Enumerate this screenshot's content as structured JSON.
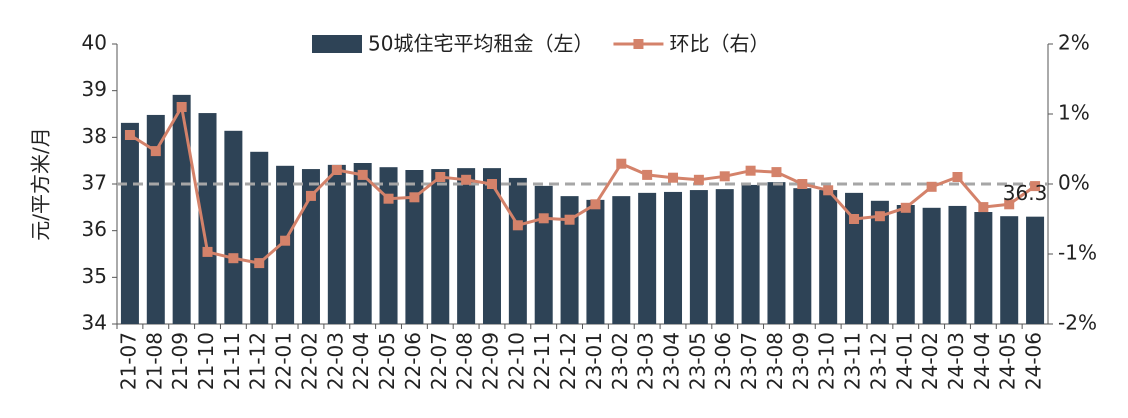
{
  "chart_data": {
    "type": "bar_line",
    "y_label": "元/平方米/月",
    "categories": [
      "21-07",
      "21-08",
      "21-09",
      "21-10",
      "21-11",
      "21-12",
      "22-01",
      "22-02",
      "22-03",
      "22-04",
      "22-05",
      "22-06",
      "22-07",
      "22-08",
      "22-09",
      "22-10",
      "22-11",
      "22-12",
      "23-01",
      "23-02",
      "23-03",
      "23-04",
      "23-05",
      "23-06",
      "23-07",
      "23-08",
      "23-09",
      "23-10",
      "23-11",
      "23-12",
      "24-01",
      "24-02",
      "24-03",
      "24-04",
      "24-05",
      "24-06"
    ],
    "series": [
      {
        "name": "50城住宅平均租金（左）",
        "color": "#2e4356",
        "kind": "bar",
        "values": [
          38.31,
          38.48,
          38.91,
          38.52,
          38.14,
          37.69,
          37.39,
          37.32,
          37.41,
          37.45,
          37.36,
          37.3,
          37.32,
          37.34,
          37.34,
          37.13,
          36.96,
          36.74,
          36.66,
          36.74,
          36.81,
          36.83,
          36.87,
          36.89,
          36.98,
          37.04,
          36.91,
          36.87,
          36.81,
          36.64,
          36.55,
          36.49,
          36.53,
          36.4,
          36.31,
          36.3
        ]
      },
      {
        "name": "环比（右）",
        "color": "#d4826a",
        "kind": "line",
        "axis": "y2",
        "values": [
          0.7,
          0.47,
          1.1,
          -0.97,
          -1.06,
          -1.13,
          -0.81,
          -0.17,
          0.2,
          0.13,
          -0.21,
          -0.19,
          0.1,
          0.06,
          0,
          -0.59,
          -0.49,
          -0.51,
          -0.29,
          0.29,
          0.13,
          0.09,
          0.06,
          0.11,
          0.19,
          0.17,
          0,
          -0.09,
          -0.5,
          -0.46,
          -0.34,
          -0.04,
          0.1,
          -0.33,
          -0.29,
          -0.03
        ]
      }
    ],
    "labeled_point": {
      "series": 0,
      "index": 35
    },
    "ylim": [
      34,
      40
    ],
    "yticks": [
      34,
      35,
      36,
      37,
      38,
      39,
      40
    ],
    "y2lim": [
      -2,
      2
    ],
    "y2ticks": [
      {
        "value": -2,
        "label": "-2%"
      },
      {
        "value": -1,
        "label": "-1%"
      },
      {
        "value": 0,
        "label": "0%"
      },
      {
        "value": 1,
        "label": "1%"
      },
      {
        "value": 2,
        "label": "2%"
      }
    ],
    "reference_line": {
      "axis": "y2",
      "value": 0,
      "color": "#a6a6a6"
    }
  }
}
